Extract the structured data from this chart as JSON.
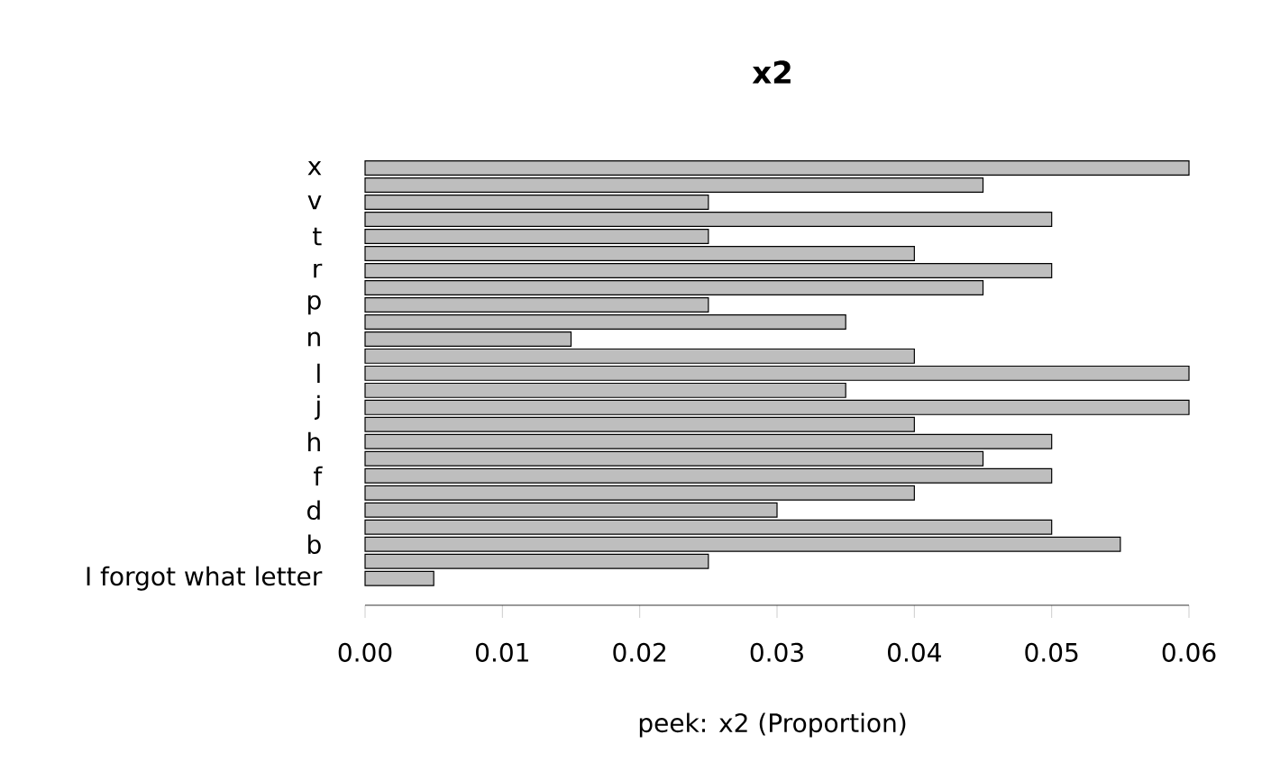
{
  "chart_data": {
    "type": "bar",
    "orientation": "horizontal",
    "title": "x2",
    "xlabel": "peek:  x2 (Proportion)",
    "categories": [
      "x",
      null,
      "v",
      null,
      "t",
      null,
      "r",
      null,
      "p",
      null,
      "n",
      null,
      "l",
      null,
      "j",
      null,
      "h",
      null,
      "f",
      null,
      "d",
      null,
      "b",
      null,
      "I forgot what letter"
    ],
    "values": [
      0.06,
      0.045,
      0.025,
      0.05,
      0.025,
      0.04,
      0.05,
      0.045,
      0.025,
      0.035,
      0.015,
      0.04,
      0.06,
      0.035,
      0.06,
      0.04,
      0.05,
      0.045,
      0.05,
      0.04,
      0.03,
      0.05,
      0.055,
      0.025,
      0.005
    ],
    "color": "#bebebe",
    "xlim": [
      0,
      0.06
    ],
    "xticks": [
      {
        "value": 0,
        "label": "0.00"
      },
      {
        "value": 0.01,
        "label": "0.01"
      },
      {
        "value": 0.02,
        "label": "0.02"
      },
      {
        "value": 0.03,
        "label": "0.03"
      },
      {
        "value": 0.04,
        "label": "0.04"
      },
      {
        "value": 0.05,
        "label": "0.05"
      },
      {
        "value": 0.06,
        "label": "0.06"
      }
    ]
  }
}
